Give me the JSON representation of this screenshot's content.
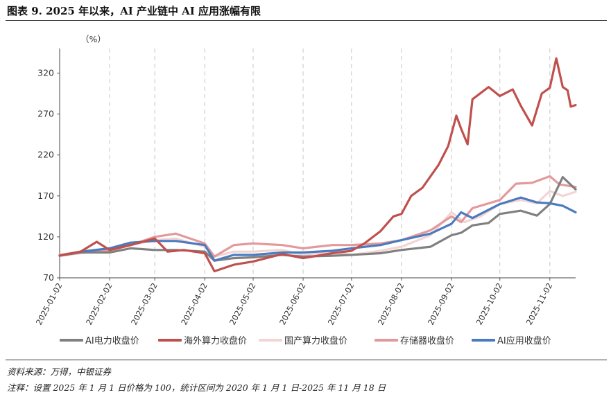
{
  "title": "图表 9. 2025 年以来，AI 产业链中 AI 应用涨幅有限",
  "unit_label": "（%）",
  "footer": {
    "source": "资料来源：万得，中银证券",
    "note": "注释：设置 2025 年 1 月 1 日价格为 100，统计区间为 2020 年 1 月 1 日-2025 年 11 月 18 日"
  },
  "chart_data": {
    "type": "line",
    "title": "2025 年以来，AI 产业链中 AI 应用涨幅有限",
    "ylabel": "（%）",
    "ylim": [
      70,
      350
    ],
    "yticks": [
      70,
      120,
      170,
      220,
      270,
      320
    ],
    "xticks": [
      "2025-01-02",
      "2025-02-02",
      "2025-03-02",
      "2025-04-02",
      "2025-05-02",
      "2025-06-02",
      "2025-07-02",
      "2025-08-02",
      "2025-09-02",
      "2025-10-02",
      "2025-11-02"
    ],
    "x_end": "2025-11-18",
    "grid": "vertical dashed",
    "legend_position": "bottom",
    "series": [
      {
        "name": "AI电力收盘价",
        "color": "#808080",
        "points": [
          [
            "2025-01-02",
            97
          ],
          [
            "2025-01-15",
            101
          ],
          [
            "2025-02-02",
            101
          ],
          [
            "2025-02-15",
            106
          ],
          [
            "2025-03-02",
            104
          ],
          [
            "2025-03-15",
            104
          ],
          [
            "2025-04-02",
            102
          ],
          [
            "2025-04-08",
            91
          ],
          [
            "2025-04-20",
            94
          ],
          [
            "2025-05-02",
            95
          ],
          [
            "2025-05-20",
            98
          ],
          [
            "2025-06-02",
            96
          ],
          [
            "2025-06-20",
            97
          ],
          [
            "2025-07-02",
            98
          ],
          [
            "2025-07-20",
            100
          ],
          [
            "2025-08-02",
            104
          ],
          [
            "2025-08-20",
            108
          ],
          [
            "2025-09-02",
            122
          ],
          [
            "2025-09-08",
            125
          ],
          [
            "2025-09-15",
            134
          ],
          [
            "2025-09-25",
            137
          ],
          [
            "2025-10-02",
            148
          ],
          [
            "2025-10-15",
            152
          ],
          [
            "2025-10-25",
            146
          ],
          [
            "2025-11-02",
            160
          ],
          [
            "2025-11-10",
            193
          ],
          [
            "2025-11-18",
            178
          ]
        ]
      },
      {
        "name": "海外算力收盘价",
        "color": "#c0504d",
        "points": [
          [
            "2025-01-02",
            97
          ],
          [
            "2025-01-15",
            102
          ],
          [
            "2025-01-25",
            114
          ],
          [
            "2025-02-02",
            104
          ],
          [
            "2025-02-15",
            110
          ],
          [
            "2025-03-02",
            118
          ],
          [
            "2025-03-10",
            102
          ],
          [
            "2025-03-20",
            104
          ],
          [
            "2025-04-02",
            100
          ],
          [
            "2025-04-08",
            78
          ],
          [
            "2025-04-20",
            86
          ],
          [
            "2025-05-02",
            90
          ],
          [
            "2025-05-20",
            99
          ],
          [
            "2025-06-02",
            94
          ],
          [
            "2025-06-20",
            100
          ],
          [
            "2025-07-02",
            103
          ],
          [
            "2025-07-10",
            112
          ],
          [
            "2025-07-20",
            127
          ],
          [
            "2025-07-28",
            145
          ],
          [
            "2025-08-02",
            148
          ],
          [
            "2025-08-08",
            170
          ],
          [
            "2025-08-15",
            180
          ],
          [
            "2025-08-25",
            208
          ],
          [
            "2025-08-31",
            231
          ],
          [
            "2025-09-05",
            268
          ],
          [
            "2025-09-08",
            252
          ],
          [
            "2025-09-12",
            233
          ],
          [
            "2025-09-15",
            288
          ],
          [
            "2025-09-25",
            303
          ],
          [
            "2025-10-02",
            292
          ],
          [
            "2025-10-10",
            300
          ],
          [
            "2025-10-15",
            280
          ],
          [
            "2025-10-22",
            256
          ],
          [
            "2025-10-28",
            295
          ],
          [
            "2025-11-02",
            302
          ],
          [
            "2025-11-06",
            338
          ],
          [
            "2025-11-10",
            303
          ],
          [
            "2025-11-13",
            299
          ],
          [
            "2025-11-15",
            279
          ],
          [
            "2025-11-18",
            281
          ]
        ]
      },
      {
        "name": "国产算力收盘价",
        "color": "#f2d5d3",
        "points": [
          [
            "2025-01-02",
            97
          ],
          [
            "2025-01-15",
            100
          ],
          [
            "2025-02-02",
            104
          ],
          [
            "2025-02-15",
            110
          ],
          [
            "2025-03-02",
            116
          ],
          [
            "2025-03-15",
            118
          ],
          [
            "2025-04-02",
            108
          ],
          [
            "2025-04-08",
            96
          ],
          [
            "2025-04-20",
            102
          ],
          [
            "2025-05-02",
            102
          ],
          [
            "2025-05-20",
            104
          ],
          [
            "2025-06-02",
            98
          ],
          [
            "2025-06-20",
            102
          ],
          [
            "2025-07-02",
            98
          ],
          [
            "2025-07-20",
            103
          ],
          [
            "2025-08-02",
            108
          ],
          [
            "2025-08-20",
            122
          ],
          [
            "2025-09-02",
            150
          ],
          [
            "2025-09-10",
            138
          ],
          [
            "2025-09-20",
            145
          ],
          [
            "2025-10-02",
            160
          ],
          [
            "2025-10-15",
            165
          ],
          [
            "2025-10-25",
            161
          ],
          [
            "2025-11-02",
            176
          ],
          [
            "2025-11-10",
            170
          ],
          [
            "2025-11-18",
            175
          ]
        ]
      },
      {
        "name": "存储器收盘价",
        "color": "#e3999b",
        "points": [
          [
            "2025-01-02",
            98
          ],
          [
            "2025-01-15",
            102
          ],
          [
            "2025-02-02",
            103
          ],
          [
            "2025-02-15",
            110
          ],
          [
            "2025-03-02",
            120
          ],
          [
            "2025-03-15",
            124
          ],
          [
            "2025-04-02",
            112
          ],
          [
            "2025-04-08",
            96
          ],
          [
            "2025-04-20",
            110
          ],
          [
            "2025-05-02",
            112
          ],
          [
            "2025-05-20",
            110
          ],
          [
            "2025-06-02",
            106
          ],
          [
            "2025-06-20",
            110
          ],
          [
            "2025-07-02",
            110
          ],
          [
            "2025-07-20",
            112
          ],
          [
            "2025-08-02",
            116
          ],
          [
            "2025-08-20",
            128
          ],
          [
            "2025-09-02",
            145
          ],
          [
            "2025-09-08",
            138
          ],
          [
            "2025-09-15",
            155
          ],
          [
            "2025-10-02",
            165
          ],
          [
            "2025-10-12",
            185
          ],
          [
            "2025-10-22",
            186
          ],
          [
            "2025-11-02",
            194
          ],
          [
            "2025-11-08",
            184
          ],
          [
            "2025-11-18",
            181
          ]
        ]
      },
      {
        "name": "AI应用收盘价",
        "color": "#4a7bbf",
        "points": [
          [
            "2025-01-02",
            97
          ],
          [
            "2025-01-15",
            102
          ],
          [
            "2025-02-02",
            106
          ],
          [
            "2025-02-15",
            113
          ],
          [
            "2025-03-02",
            115
          ],
          [
            "2025-03-15",
            115
          ],
          [
            "2025-04-02",
            110
          ],
          [
            "2025-04-08",
            91
          ],
          [
            "2025-04-20",
            98
          ],
          [
            "2025-05-02",
            98
          ],
          [
            "2025-05-20",
            101
          ],
          [
            "2025-06-02",
            101
          ],
          [
            "2025-06-20",
            103
          ],
          [
            "2025-07-02",
            106
          ],
          [
            "2025-07-20",
            110
          ],
          [
            "2025-08-02",
            116
          ],
          [
            "2025-08-20",
            124
          ],
          [
            "2025-09-02",
            136
          ],
          [
            "2025-09-08",
            150
          ],
          [
            "2025-09-15",
            143
          ],
          [
            "2025-10-02",
            160
          ],
          [
            "2025-10-15",
            168
          ],
          [
            "2025-10-25",
            162
          ],
          [
            "2025-11-02",
            161
          ],
          [
            "2025-11-10",
            158
          ],
          [
            "2025-11-18",
            150
          ]
        ]
      }
    ]
  }
}
